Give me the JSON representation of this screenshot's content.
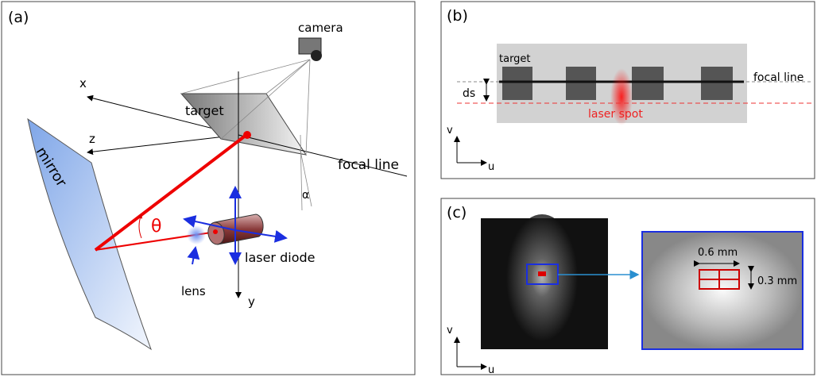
{
  "panel_a": {
    "label": "(a)",
    "camera": "camera",
    "x_axis": "x",
    "z_axis": "z",
    "target": "target",
    "mirror": "mirror",
    "focal_line": "focal line",
    "alpha": "α",
    "theta": "θ",
    "laser_diode": "laser diode",
    "lens": "lens",
    "y_axis": "y"
  },
  "panel_b": {
    "label": "(b)",
    "target": "target",
    "ds": "ds",
    "focal_line": "focal line",
    "laser_spot": "laser spot",
    "v_axis": "v",
    "u_axis": "u"
  },
  "panel_c": {
    "label": "(c)",
    "width": "0.6 mm",
    "height": "0.3 mm",
    "v_axis": "v",
    "u_axis": "u"
  }
}
